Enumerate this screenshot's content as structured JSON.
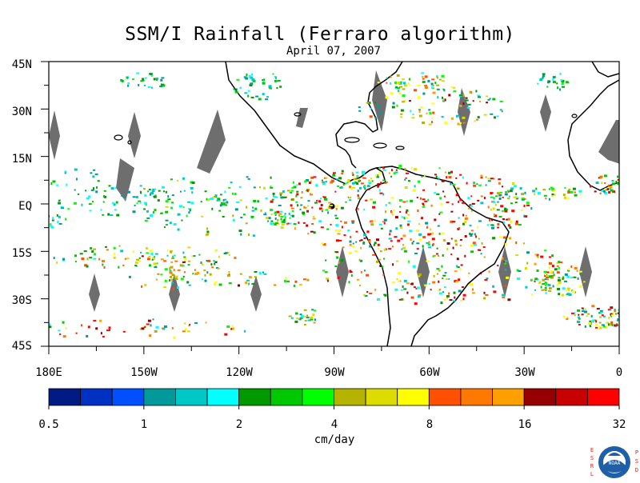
{
  "title": "SSM/I Rainfall (Ferraro algorithm)",
  "subtitle": "April 07, 2007",
  "map": {
    "lat_labels": [
      "45N",
      "30N",
      "15N",
      "EQ",
      "15S",
      "30S",
      "45S"
    ],
    "lon_labels": [
      "180E",
      "150W",
      "120W",
      "90W",
      "60W",
      "30W",
      "0"
    ],
    "lon_range": [
      -180,
      0
    ],
    "lat_range": [
      -45,
      45
    ]
  },
  "colorbar": {
    "unit_label": "cm/day",
    "tick_labels": [
      "0.5",
      "1",
      "2",
      "4",
      "8",
      "16",
      "32"
    ],
    "colors": [
      "#001b84",
      "#0031c2",
      "#0050ff",
      "#009a9a",
      "#00c8c8",
      "#00ffff",
      "#009a00",
      "#00c800",
      "#00ff00",
      "#b4b400",
      "#dcdc00",
      "#ffff00",
      "#ff5000",
      "#ff7800",
      "#ffa000",
      "#960000",
      "#c80000",
      "#ff0000"
    ]
  },
  "logo": {
    "left_letters": [
      "E",
      "S",
      "R",
      "L"
    ],
    "right_letters": [
      "P",
      "S",
      "D"
    ],
    "emblem_text": "NOAA"
  }
}
